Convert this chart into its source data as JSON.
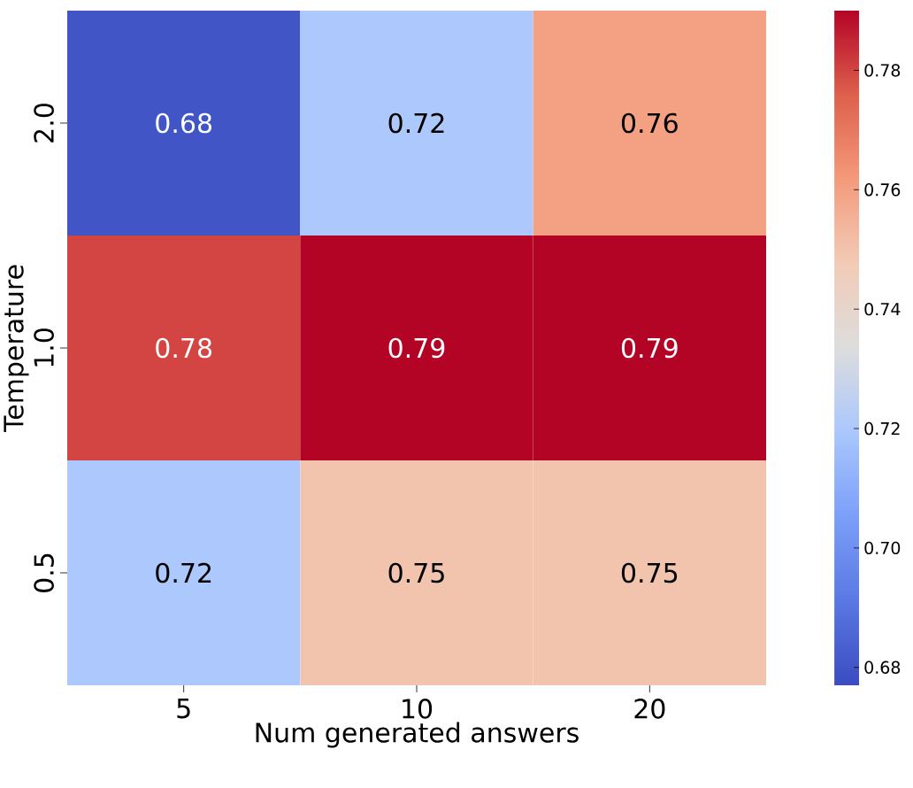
{
  "chart_data": {
    "type": "heatmap",
    "xlabel": "Num generated answers",
    "ylabel": "Temperature",
    "categories": [
      "5",
      "10",
      "20"
    ],
    "y_categories": [
      "2.0",
      "1.0",
      "0.5"
    ],
    "cells": [
      [
        0.68,
        0.72,
        0.76
      ],
      [
        0.78,
        0.79,
        0.79
      ],
      [
        0.72,
        0.75,
        0.75
      ]
    ],
    "data_labels": true,
    "clim": [
      0.677,
      0.79
    ],
    "cticks": [
      0.68,
      {
        "value": 0.7,
        "label": "0.70"
      },
      0.72,
      0.74,
      0.76,
      0.78
    ]
  }
}
